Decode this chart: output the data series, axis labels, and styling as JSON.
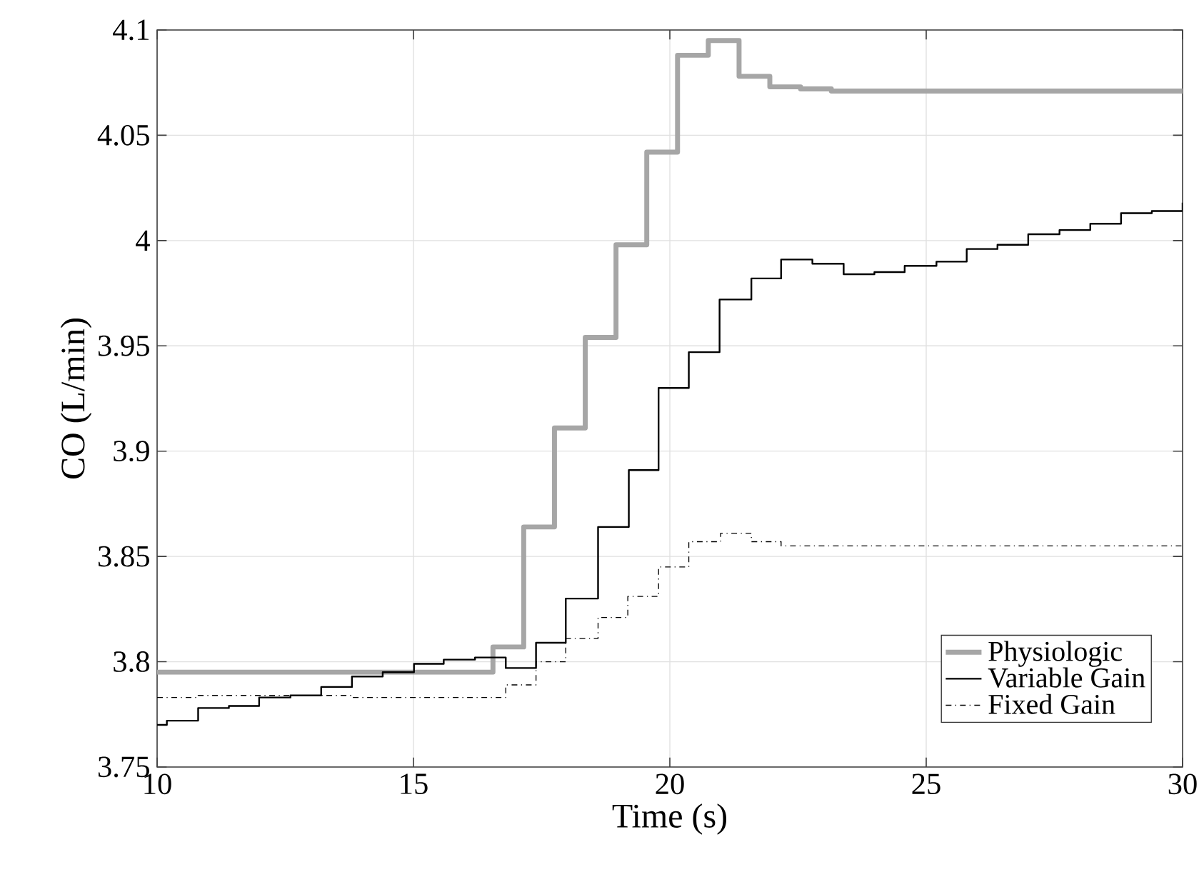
{
  "chart_data": {
    "type": "step",
    "xlabel": "Time (s)",
    "ylabel": "CO (L/min)",
    "xlim": [
      10,
      30
    ],
    "ylim": [
      3.75,
      4.1
    ],
    "xticks": [
      10,
      15,
      20,
      25,
      30
    ],
    "yticks": [
      3.75,
      3.8,
      3.85,
      3.9,
      3.95,
      4,
      4.05,
      4.1
    ],
    "grid": true,
    "legend": "bottom right",
    "series": [
      {
        "name": "Physiologic",
        "color": "#a6a6a6",
        "line_style": "solid",
        "x": [
          10,
          16.55,
          17.15,
          17.75,
          18.35,
          18.95,
          19.55,
          20.15,
          20.75,
          21.35,
          21.95,
          22.55,
          23.15,
          30
        ],
        "values": [
          3.795,
          3.807,
          3.864,
          3.911,
          3.954,
          3.998,
          4.042,
          4.088,
          4.095,
          4.078,
          4.073,
          4.072,
          4.071,
          4.071
        ]
      },
      {
        "name": "Variable Gain",
        "color": "#000000",
        "line_style": "solid",
        "x": [
          10,
          10.19,
          10.8,
          11.4,
          11.99,
          12.6,
          13.2,
          13.8,
          14.4,
          15.01,
          15.59,
          16.2,
          16.8,
          17.39,
          17.97,
          18.6,
          19.2,
          19.78,
          20.37,
          20.97,
          21.59,
          22.17,
          22.78,
          23.39,
          23.99,
          24.58,
          25.2,
          25.79,
          26.39,
          26.99,
          27.6,
          28.2,
          28.8,
          29.4,
          30
        ],
        "values": [
          3.77,
          3.772,
          3.778,
          3.779,
          3.783,
          3.784,
          3.788,
          3.793,
          3.795,
          3.799,
          3.801,
          3.802,
          3.797,
          3.809,
          3.83,
          3.864,
          3.891,
          3.93,
          3.947,
          3.972,
          3.982,
          3.991,
          3.989,
          3.984,
          3.985,
          3.988,
          3.99,
          3.996,
          3.998,
          4.003,
          4.005,
          4.008,
          4.013,
          4.014,
          4.018
        ]
      },
      {
        "name": "Fixed Gain",
        "color": "#000000",
        "line_style": "dashdot",
        "x": [
          10,
          10.8,
          13.8,
          16.8,
          17.39,
          17.97,
          18.6,
          19.18,
          19.78,
          20.37,
          20.99,
          21.59,
          22.17,
          30
        ],
        "values": [
          3.783,
          3.784,
          3.783,
          3.789,
          3.8,
          3.811,
          3.821,
          3.831,
          3.845,
          3.857,
          3.861,
          3.857,
          3.855,
          3.855
        ]
      }
    ]
  }
}
